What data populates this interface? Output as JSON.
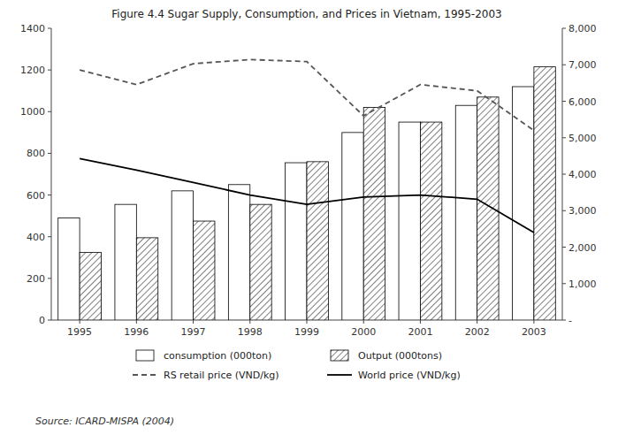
{
  "chart_data": {
    "type": "bar",
    "title": "Figure 4.4  Sugar Supply, Consumption, and Prices in Vietnam, 1995-2003",
    "categories": [
      "1995",
      "1996",
      "1997",
      "1998",
      "1999",
      "2000",
      "2001",
      "2002",
      "2003"
    ],
    "series": [
      {
        "name": "consumption (000ton)",
        "type": "bar",
        "color": "#ffffff",
        "values": [
          490,
          555,
          620,
          650,
          755,
          900,
          950,
          1030,
          1120
        ]
      },
      {
        "name": "Output (000tons)",
        "type": "bar",
        "color": "#ffffff",
        "values": [
          325,
          395,
          475,
          555,
          760,
          1020,
          950,
          1070,
          1215
        ]
      },
      {
        "name": "RS retail price (VND/kg)",
        "type": "line",
        "color": "#555555",
        "line_style": "dashed",
        "values": [
          1200,
          1130,
          1230,
          1250,
          1240,
          980,
          1130,
          1100,
          910
        ]
      },
      {
        "name": "World price (VND/kg)",
        "type": "line",
        "color": "#000000",
        "line_style": "solid",
        "values": [
          775,
          720,
          660,
          600,
          555,
          590,
          600,
          580,
          420
        ]
      }
    ],
    "ylim": [
      0,
      1400
    ],
    "yticks": [
      0,
      200,
      400,
      600,
      800,
      1000,
      1200,
      1400
    ],
    "y2lim": [
      0,
      8000
    ],
    "y2ticks": [
      {
        "value": 0,
        "label": "-"
      },
      {
        "value": 1000,
        "label": "1,000"
      },
      {
        "value": 2000,
        "label": "2,000"
      },
      {
        "value": 3000,
        "label": "3,000"
      },
      {
        "value": 4000,
        "label": "4,000"
      },
      {
        "value": 5000,
        "label": "5,000"
      },
      {
        "value": 6000,
        "label": "6,000"
      },
      {
        "value": 7000,
        "label": "7,000"
      },
      {
        "value": 8000,
        "label": "8,000"
      }
    ],
    "annotations": [
      "Source: ICARD-MISPA (2004)"
    ],
    "legend": "bottom",
    "grid": false
  }
}
